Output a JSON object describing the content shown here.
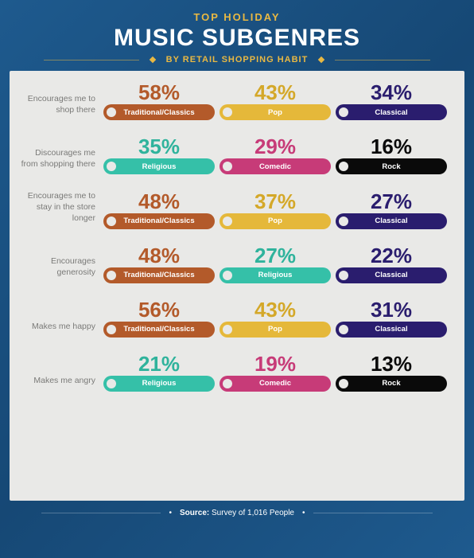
{
  "background_gradient": [
    "#1e5a8e",
    "#164875",
    "#1e5a8e"
  ],
  "panel_bg": "#e9e9e7",
  "accent_gold": "#e8b843",
  "title_top": "TOP HOLIDAY",
  "title_main": "MUSIC SUBGENRES",
  "title_sub": "BY RETAIL SHOPPING HABIT",
  "footer_label": "Source:",
  "footer_value": "Survey of 1,016 People",
  "genre_colors": {
    "Traditional/Classics": {
      "pill": "#b35a2a",
      "text": "#b35a2a"
    },
    "Pop": {
      "pill": "#e5b83a",
      "text": "#d4a829"
    },
    "Classical": {
      "pill": "#2a1d6e",
      "text": "#2a1d6e"
    },
    "Religious": {
      "pill": "#35c0a8",
      "text": "#2fb39c"
    },
    "Comedic": {
      "pill": "#c73b78",
      "text": "#c73b78"
    },
    "Rock": {
      "pill": "#0a0a0a",
      "text": "#0a0a0a"
    }
  },
  "rows": [
    {
      "label": "Encourages me to shop there",
      "bars": [
        {
          "genre": "Traditional/Classics",
          "pct": "58%"
        },
        {
          "genre": "Pop",
          "pct": "43%"
        },
        {
          "genre": "Classical",
          "pct": "34%"
        }
      ]
    },
    {
      "label": "Discourages me from shopping there",
      "bars": [
        {
          "genre": "Religious",
          "pct": "35%"
        },
        {
          "genre": "Comedic",
          "pct": "29%"
        },
        {
          "genre": "Rock",
          "pct": "16%"
        }
      ]
    },
    {
      "label": "Encourages me to stay in the store longer",
      "bars": [
        {
          "genre": "Traditional/Classics",
          "pct": "48%"
        },
        {
          "genre": "Pop",
          "pct": "37%"
        },
        {
          "genre": "Classical",
          "pct": "27%"
        }
      ]
    },
    {
      "label": "Encourages generosity",
      "bars": [
        {
          "genre": "Traditional/Classics",
          "pct": "48%"
        },
        {
          "genre": "Religious",
          "pct": "27%"
        },
        {
          "genre": "Classical",
          "pct": "22%"
        }
      ]
    },
    {
      "label": "Makes me happy",
      "bars": [
        {
          "genre": "Traditional/Classics",
          "pct": "56%"
        },
        {
          "genre": "Pop",
          "pct": "43%"
        },
        {
          "genre": "Classical",
          "pct": "31%"
        }
      ]
    },
    {
      "label": "Makes me angry",
      "bars": [
        {
          "genre": "Religious",
          "pct": "21%"
        },
        {
          "genre": "Comedic",
          "pct": "19%"
        },
        {
          "genre": "Rock",
          "pct": "13%"
        }
      ]
    }
  ]
}
